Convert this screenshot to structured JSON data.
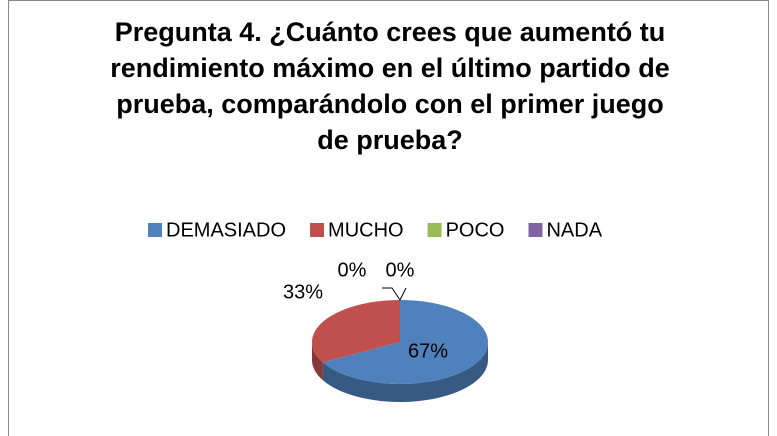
{
  "chart_data": {
    "type": "pie",
    "title": "Pregunta 4. ¿Cuánto crees que aumentó tu rendimiento máximo en el último partido de prueba, comparándolo con el primer juego de prueba?",
    "categories": [
      "DEMASIADO",
      "MUCHO",
      "POCO",
      "NADA"
    ],
    "values": [
      67,
      33,
      0,
      0
    ],
    "value_labels": [
      "67%",
      "33%",
      "0%",
      "0%"
    ],
    "colors": [
      "#4f81bd",
      "#c0504d",
      "#9bbb59",
      "#8064a2"
    ],
    "legend": "top"
  }
}
